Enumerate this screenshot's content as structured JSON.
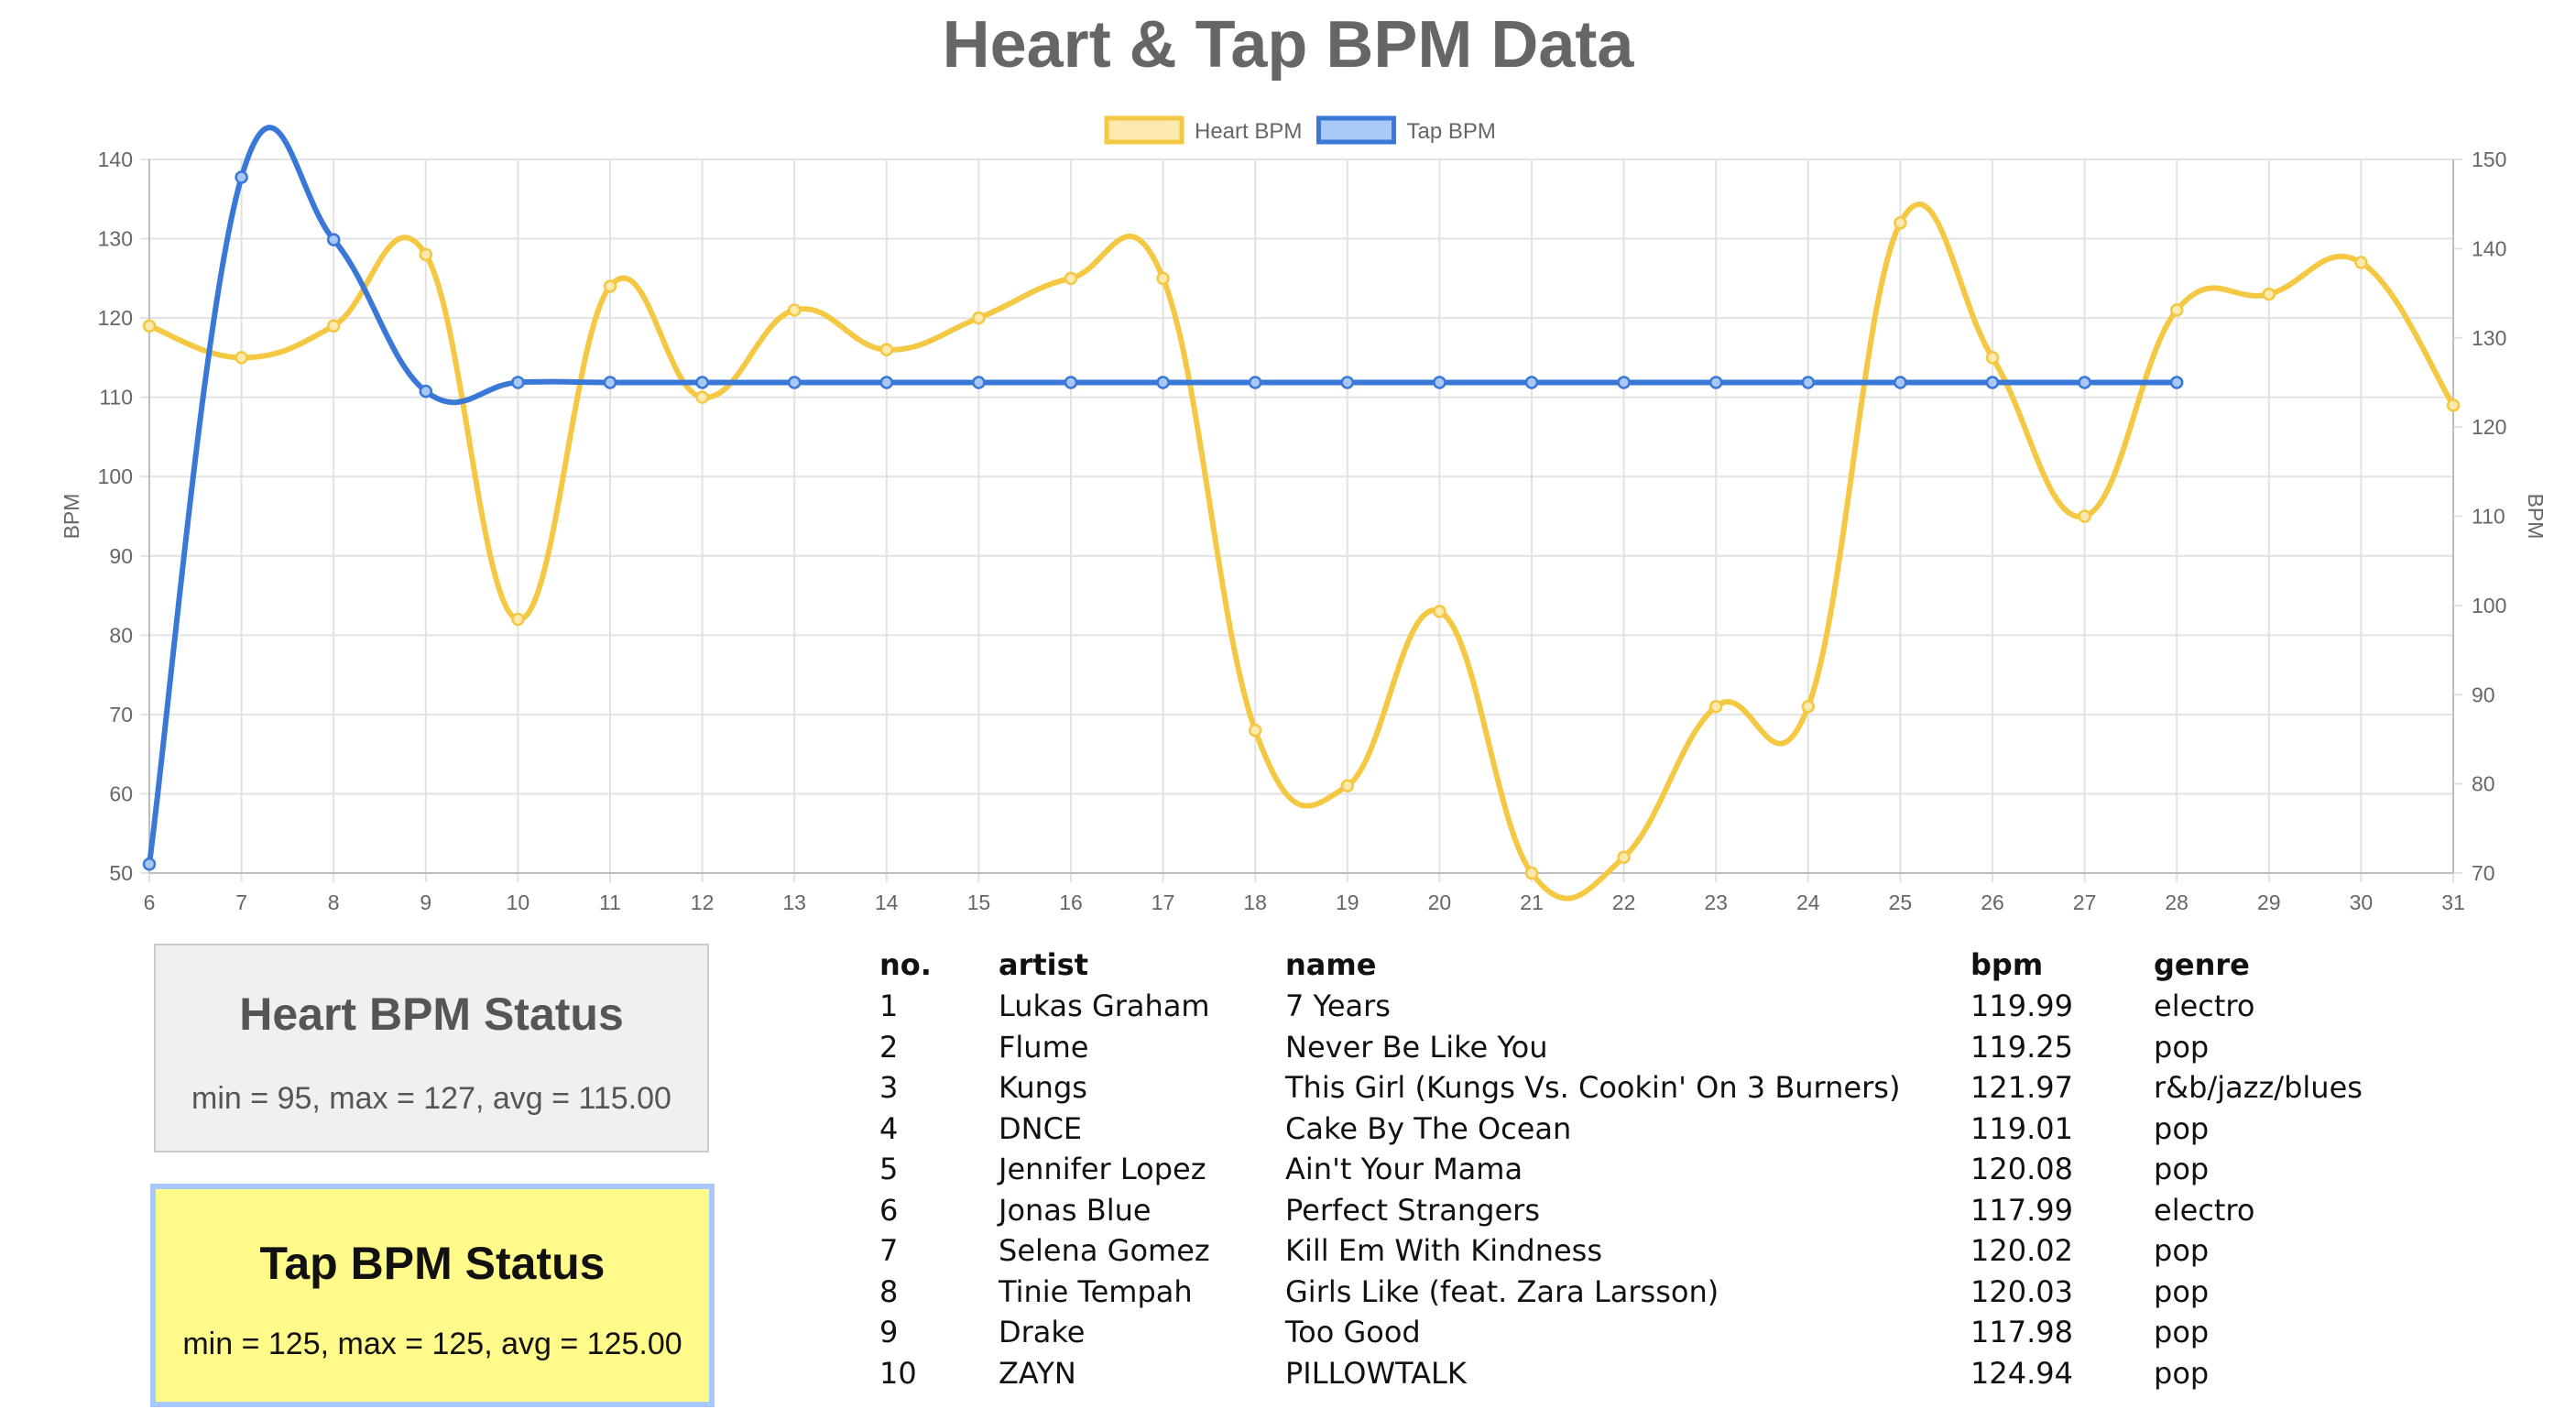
{
  "title": "Heart & Tap BPM Data",
  "chart_data": {
    "type": "line",
    "x": [
      6,
      7,
      8,
      9,
      10,
      11,
      12,
      13,
      14,
      15,
      16,
      17,
      18,
      19,
      20,
      21,
      22,
      23,
      24,
      25,
      26,
      27,
      28,
      29,
      30,
      31
    ],
    "series": [
      {
        "name": "Heart BPM",
        "axis": "left",
        "color": "#f4c842",
        "fill": "#fce9ae",
        "x": [
          6,
          7,
          8,
          9,
          10,
          11,
          12,
          13,
          14,
          15,
          16,
          17,
          18,
          19,
          20,
          21,
          22,
          23,
          24,
          25,
          26,
          27,
          28,
          29,
          30,
          31
        ],
        "values": [
          119,
          115,
          119,
          128,
          82,
          124,
          110,
          121,
          116,
          120,
          125,
          125,
          68,
          61,
          83,
          50,
          52,
          71,
          71,
          132,
          115,
          95,
          121,
          123,
          127,
          109
        ]
      },
      {
        "name": "Tap BPM",
        "axis": "right",
        "color": "#3a78d8",
        "fill": "#a9c8f5",
        "x": [
          6,
          7,
          8,
          9,
          10,
          11,
          12,
          13,
          14,
          15,
          16,
          17,
          18,
          19,
          20,
          21,
          22,
          23,
          24,
          25,
          26,
          27,
          28
        ],
        "values": [
          71,
          148,
          141,
          124,
          125,
          125,
          125,
          125,
          125,
          125,
          125,
          125,
          125,
          125,
          125,
          125,
          125,
          125,
          125,
          125,
          125,
          125,
          125
        ]
      }
    ],
    "y_left": {
      "label": "BPM",
      "min": 50,
      "max": 140,
      "ticks": [
        50,
        60,
        70,
        80,
        90,
        100,
        110,
        120,
        130,
        140
      ]
    },
    "y_right": {
      "label": "BPM",
      "min": 70,
      "max": 150,
      "ticks": [
        70,
        80,
        90,
        100,
        110,
        120,
        130,
        140,
        150
      ]
    },
    "xlim": [
      6,
      31
    ],
    "grid": true,
    "legend_position": "top"
  },
  "heart_status": {
    "title": "Heart BPM Status",
    "text": "min = 95, max = 127, avg = 115.00"
  },
  "tap_status": {
    "title": "Tap BPM Status",
    "text": "min = 125, max = 125, avg = 125.00"
  },
  "table": {
    "headers": {
      "no": "no.",
      "artist": "artist",
      "name": "name",
      "bpm": "bpm",
      "genre": "genre"
    },
    "rows": [
      {
        "no": "1",
        "artist": "Lukas Graham",
        "name": "7 Years",
        "bpm": "119.99",
        "genre": "electro"
      },
      {
        "no": "2",
        "artist": "Flume",
        "name": "Never Be Like You",
        "bpm": "119.25",
        "genre": "pop"
      },
      {
        "no": "3",
        "artist": "Kungs",
        "name": "This Girl (Kungs Vs. Cookin' On 3 Burners)",
        "bpm": "121.97",
        "genre": "r&b/jazz/blues"
      },
      {
        "no": "4",
        "artist": "DNCE",
        "name": "Cake By The Ocean",
        "bpm": "119.01",
        "genre": "pop"
      },
      {
        "no": "5",
        "artist": "Jennifer Lopez",
        "name": "Ain't Your Mama",
        "bpm": "120.08",
        "genre": "pop"
      },
      {
        "no": "6",
        "artist": "Jonas Blue",
        "name": "Perfect Strangers",
        "bpm": "117.99",
        "genre": "electro"
      },
      {
        "no": "7",
        "artist": "Selena Gomez",
        "name": "Kill Em With Kindness",
        "bpm": "120.02",
        "genre": "pop"
      },
      {
        "no": "8",
        "artist": "Tinie Tempah",
        "name": "Girls Like (feat. Zara Larsson)",
        "bpm": "120.03",
        "genre": "pop"
      },
      {
        "no": "9",
        "artist": "Drake",
        "name": "Too Good",
        "bpm": "117.98",
        "genre": "pop"
      },
      {
        "no": "10",
        "artist": "ZAYN",
        "name": "PILLOWTALK",
        "bpm": "124.94",
        "genre": "pop"
      }
    ]
  }
}
